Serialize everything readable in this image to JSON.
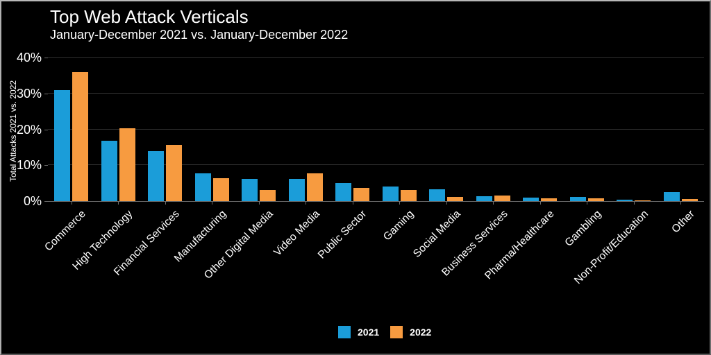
{
  "colors": {
    "background": "#000000",
    "text": "#ffffff",
    "gridline": "#2f2f2f",
    "axis_line": "#6f6f6f",
    "series_2021": "#1b9dd9",
    "series_2022": "#f79b40"
  },
  "chart_data": {
    "type": "bar",
    "title": "Top Web Attack Verticals",
    "subtitle": "January-December 2021 vs. January-December 2022",
    "xlabel": "",
    "ylabel": "Total Attacks 2021 vs. 2022",
    "ylim": [
      0,
      40
    ],
    "grid": "horizontal",
    "legend_position": "bottom-center",
    "yticks": [
      {
        "value": 0,
        "label": "0%"
      },
      {
        "value": 10,
        "label": "10%"
      },
      {
        "value": 20,
        "label": "20%"
      },
      {
        "value": 30,
        "label": "30%"
      },
      {
        "value": 40,
        "label": "40%"
      }
    ],
    "categories": [
      "Commerce",
      "High Technology",
      "Financial Services",
      "Manufacturing",
      "Other Digital Media",
      "Video Media",
      "Public Sector",
      "Gaming",
      "Social Media",
      "Business Services",
      "Pharma/Healthcare",
      "Gambling",
      "Non-Profit/Education",
      "Other"
    ],
    "series": [
      {
        "name": "2021",
        "color": "#1b9dd9",
        "values": [
          31.0,
          16.8,
          14.0,
          7.8,
          6.2,
          6.1,
          5.0,
          4.1,
          3.3,
          1.3,
          1.0,
          1.2,
          0.4,
          2.5
        ]
      },
      {
        "name": "2022",
        "color": "#f79b40",
        "values": [
          36.0,
          20.2,
          15.7,
          6.4,
          3.0,
          7.7,
          3.6,
          3.0,
          1.2,
          1.5,
          0.7,
          0.8,
          0.2,
          0.5
        ]
      }
    ]
  }
}
